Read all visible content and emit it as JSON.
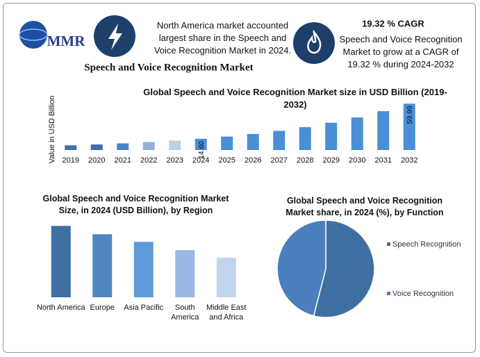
{
  "header": {
    "logo": "MMR",
    "title": "Speech and Voice Recognition Market",
    "highlight": "North America market accounted largest share in the Speech and Voice Recognition Market in 2024.",
    "cagr": "19.32 % CAGR",
    "cagr_text": "Speech and Voice Recognition Market to grow at a CAGR of 19.32 % during 2024-2032"
  },
  "chart_data": [
    {
      "type": "bar",
      "title": "Global Speech and Voice Recognition Market size in USD Billion (2019-2032)",
      "y_label": "Value in USD Billion",
      "categories": [
        "2019",
        "2020",
        "2021",
        "2022",
        "2023",
        "2024",
        "2025",
        "2026",
        "2027",
        "2028",
        "2029",
        "2030",
        "2031",
        "2032"
      ],
      "values": [
        6.1,
        7.2,
        8.6,
        10.3,
        12.2,
        14.6,
        17.4,
        20.8,
        24.8,
        29.6,
        35.3,
        42.1,
        50.3,
        59.99
      ],
      "value_labels": [
        null,
        null,
        null,
        null,
        null,
        "14.60",
        null,
        null,
        null,
        null,
        null,
        null,
        null,
        "59.99"
      ],
      "colors": [
        "#3f6fa8",
        "#3f6fa8",
        "#4a85c8",
        "#8fb1e0",
        "#bcd0ee",
        "#4a8fd6",
        "#4a8fd6",
        "#4a8fd6",
        "#4a8fd6",
        "#4a8fd6",
        "#4a8fd6",
        "#4a8fd6",
        "#4a8fd6",
        "#4a8fd6"
      ],
      "ylim": [
        0,
        62
      ]
    },
    {
      "type": "bar",
      "title": "Global Speech and Voice Recognition Market Size, in 2024 (USD Billion), by Region",
      "categories": [
        "North America",
        "Europe",
        "Asia Pacific",
        "South America",
        "Middle East and Africa"
      ],
      "values": [
        3.77,
        3.33,
        2.93,
        2.49,
        2.09
      ],
      "colors": [
        "#3f6fa0",
        "#4f86c0",
        "#5f9ad8",
        "#97b9e4",
        "#c0d4ee"
      ],
      "ylim": [
        0,
        4
      ]
    },
    {
      "type": "pie",
      "title": "Global Speech and Voice Recognition Market share, in 2024 (%), by Function",
      "categories": [
        "Speech Recognition",
        "Voice Recognition"
      ],
      "values": [
        54,
        46
      ],
      "colors": [
        "#3f6fa0",
        "#4b7fbe"
      ],
      "legend": "right"
    }
  ]
}
